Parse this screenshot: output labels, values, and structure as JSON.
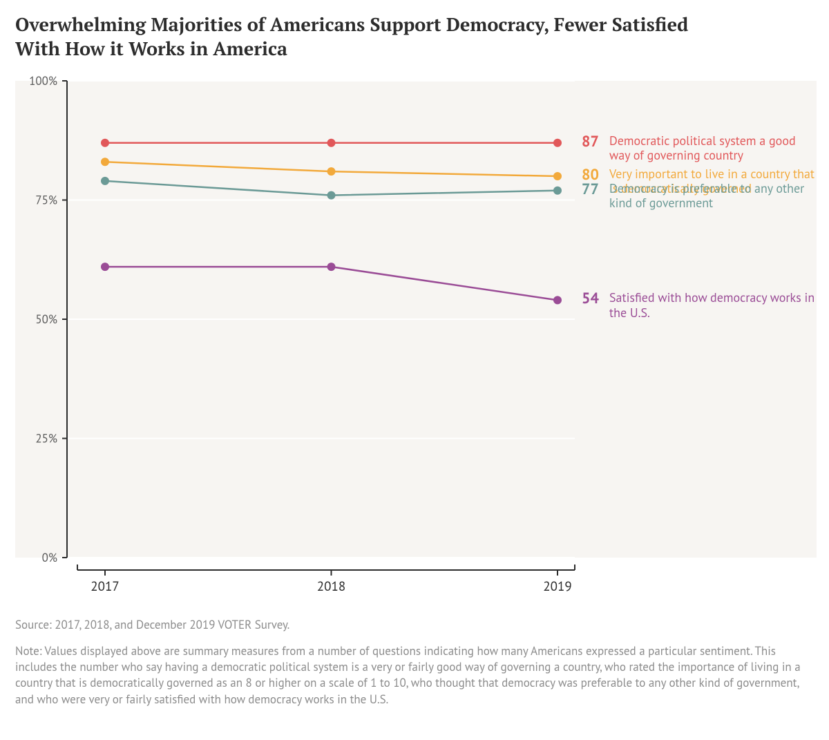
{
  "title": "Overwhelming Majorities of Americans Support Democracy, Fewer Satisfied With How it Works in America",
  "chart": {
    "type": "line",
    "background_color": "#ffffff",
    "panel_fill": "#f7f5f2",
    "grid_color": "#ffffff",
    "axis_color": "#2c2c2c",
    "tick_label_color": "#5a5a5a",
    "x_tick_label_color": "#2c2c2c",
    "x": {
      "categories": [
        "2017",
        "2018",
        "2019"
      ]
    },
    "y": {
      "min": 0,
      "max": 100,
      "step": 25,
      "suffix": "%",
      "labels": [
        "0%",
        "25%",
        "50%",
        "75%",
        "100%"
      ]
    },
    "line_width": 2.5,
    "marker_radius": 6,
    "series": [
      {
        "id": "dem_system_good",
        "label": "Democratic political system a good way of governing country",
        "color": "#e15759",
        "values": [
          87,
          87,
          87
        ],
        "end_label": "87"
      },
      {
        "id": "important_dem_governed",
        "label": "Very important to live in a country that is democratically governed",
        "color": "#f2a93b",
        "values": [
          83,
          81,
          80
        ],
        "end_label": "80"
      },
      {
        "id": "democracy_preferable",
        "label": "Democracy is preferable to any other kind of government",
        "color": "#6b9a96",
        "values": [
          79,
          76,
          77
        ],
        "end_label": "77"
      },
      {
        "id": "satisfied_us",
        "label": "Satisfied with how democracy works in the U.S.",
        "color": "#9a4c96",
        "values": [
          61,
          61,
          54
        ],
        "end_label": "54"
      }
    ],
    "legend": {
      "endval_fontsize": 22,
      "label_fontsize": 18
    }
  },
  "footer": {
    "source": "Source: 2017, 2018, and December 2019 VOTER Survey.",
    "note": "Note: Values displayed above are summary measures from a number of questions indicating how many Americans expressed a particular sentiment. This includes the number who say having a democratic political system is a very or fairly good way of governing a country, who rated the importance of living in a country that is democratically governed as an 8 or higher on a scale of 1 to 10, who thought that democracy was preferable to any other kind of government, and who were very or fairly satisfied with how democracy works in the U.S."
  }
}
